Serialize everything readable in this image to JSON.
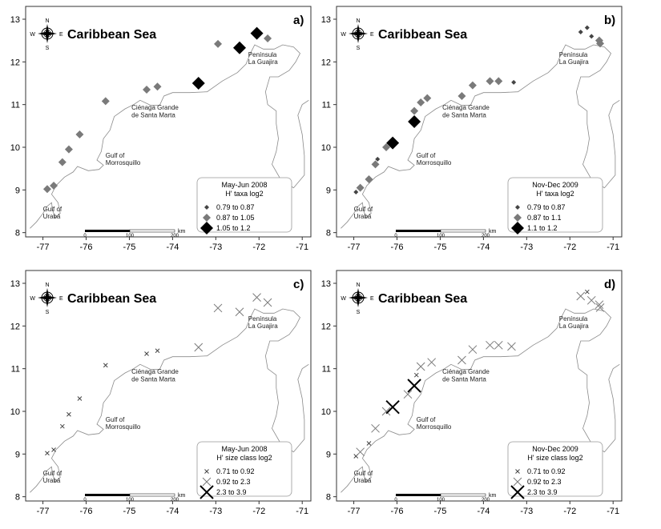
{
  "figure": {
    "sea_label": "Caribbean Sea",
    "place_labels": [
      {
        "id": "guajira-1",
        "text": "Península"
      },
      {
        "id": "guajira-2",
        "text": "La Guajira"
      },
      {
        "id": "cienaga-1",
        "text": "Ciénaga Grande"
      },
      {
        "id": "cienaga-2",
        "text": "de Santa Marta"
      },
      {
        "id": "morro-1",
        "text": "Gulf of"
      },
      {
        "id": "morro-2",
        "text": "Morrosquillo"
      },
      {
        "id": "uraba-1",
        "text": "Gulf of"
      },
      {
        "id": "uraba-2",
        "text": "Urabá"
      }
    ],
    "compass": {
      "n": "N",
      "s": "S",
      "e": "E",
      "w": "W"
    },
    "scale_bar": {
      "ticks": [
        "0",
        "100",
        "200"
      ],
      "unit": "km"
    },
    "x_ticks": [
      "-77",
      "-76",
      "-75",
      "-74",
      "-73",
      "-72",
      "-71"
    ],
    "y_ticks": [
      "8",
      "9",
      "10",
      "11",
      "12",
      "13"
    ]
  },
  "panels": [
    {
      "letter": "a)",
      "legend_title_1": "May-Jun 2008",
      "legend_title_2": "H' taxa log2",
      "symbol": "diamond",
      "classes": [
        {
          "range": "0.79  to  0.87"
        },
        {
          "range": "0.87  to  1.05"
        },
        {
          "range": "1.05  to  1.2"
        }
      ],
      "points": [
        {
          "lon": -76.9,
          "lat": 9.02,
          "cls": 1
        },
        {
          "lon": -76.75,
          "lat": 9.1,
          "cls": 1
        },
        {
          "lon": -76.55,
          "lat": 9.65,
          "cls": 1
        },
        {
          "lon": -76.4,
          "lat": 9.95,
          "cls": 1
        },
        {
          "lon": -76.15,
          "lat": 10.3,
          "cls": 1
        },
        {
          "lon": -75.55,
          "lat": 11.08,
          "cls": 1
        },
        {
          "lon": -74.6,
          "lat": 11.35,
          "cls": 1
        },
        {
          "lon": -74.35,
          "lat": 11.42,
          "cls": 1
        },
        {
          "lon": -73.4,
          "lat": 11.5,
          "cls": 2
        },
        {
          "lon": -72.95,
          "lat": 12.42,
          "cls": 1
        },
        {
          "lon": -72.45,
          "lat": 12.33,
          "cls": 2
        },
        {
          "lon": -72.05,
          "lat": 12.67,
          "cls": 2
        },
        {
          "lon": -71.8,
          "lat": 12.55,
          "cls": 1
        }
      ]
    },
    {
      "letter": "b)",
      "legend_title_1": "Nov-Dec 2009",
      "legend_title_2": "H' taxa log2",
      "symbol": "diamond",
      "classes": [
        {
          "range": "0.79  to  0.87"
        },
        {
          "range": "0.87  to  1.1"
        },
        {
          "range": "1.1  to  1.2"
        }
      ],
      "points": [
        {
          "lon": -76.95,
          "lat": 8.95,
          "cls": 0
        },
        {
          "lon": -76.85,
          "lat": 9.05,
          "cls": 1
        },
        {
          "lon": -76.65,
          "lat": 9.25,
          "cls": 1
        },
        {
          "lon": -76.5,
          "lat": 9.6,
          "cls": 1
        },
        {
          "lon": -76.45,
          "lat": 9.72,
          "cls": 0
        },
        {
          "lon": -76.1,
          "lat": 10.1,
          "cls": 2
        },
        {
          "lon": -76.25,
          "lat": 10.0,
          "cls": 1
        },
        {
          "lon": -75.6,
          "lat": 10.6,
          "cls": 2
        },
        {
          "lon": -75.6,
          "lat": 10.85,
          "cls": 1
        },
        {
          "lon": -75.45,
          "lat": 11.05,
          "cls": 1
        },
        {
          "lon": -75.3,
          "lat": 11.15,
          "cls": 1
        },
        {
          "lon": -74.5,
          "lat": 11.2,
          "cls": 1
        },
        {
          "lon": -74.25,
          "lat": 11.45,
          "cls": 1
        },
        {
          "lon": -73.85,
          "lat": 11.55,
          "cls": 1
        },
        {
          "lon": -73.65,
          "lat": 11.55,
          "cls": 1
        },
        {
          "lon": -73.3,
          "lat": 11.52,
          "cls": 0
        },
        {
          "lon": -71.75,
          "lat": 12.7,
          "cls": 0
        },
        {
          "lon": -71.6,
          "lat": 12.8,
          "cls": 0
        },
        {
          "lon": -71.5,
          "lat": 12.6,
          "cls": 0
        },
        {
          "lon": -71.32,
          "lat": 12.5,
          "cls": 1
        },
        {
          "lon": -71.3,
          "lat": 12.43,
          "cls": 1
        }
      ]
    },
    {
      "letter": "c)",
      "legend_title_1": "May-Jun 2008",
      "legend_title_2": "H' size class log2",
      "symbol": "cross",
      "classes": [
        {
          "range": "0.71  to  0.92"
        },
        {
          "range": "0.92  to  2.3"
        },
        {
          "range": "2.3  to  3.9"
        }
      ],
      "points": [
        {
          "lon": -76.9,
          "lat": 9.02,
          "cls": 0
        },
        {
          "lon": -76.75,
          "lat": 9.1,
          "cls": 0
        },
        {
          "lon": -76.55,
          "lat": 9.65,
          "cls": 0
        },
        {
          "lon": -76.4,
          "lat": 9.93,
          "cls": 0
        },
        {
          "lon": -76.15,
          "lat": 10.3,
          "cls": 0
        },
        {
          "lon": -75.55,
          "lat": 11.08,
          "cls": 0
        },
        {
          "lon": -74.6,
          "lat": 11.35,
          "cls": 0
        },
        {
          "lon": -74.35,
          "lat": 11.42,
          "cls": 0
        },
        {
          "lon": -73.4,
          "lat": 11.5,
          "cls": 1
        },
        {
          "lon": -72.95,
          "lat": 12.42,
          "cls": 1
        },
        {
          "lon": -72.45,
          "lat": 12.33,
          "cls": 1
        },
        {
          "lon": -72.05,
          "lat": 12.67,
          "cls": 1
        },
        {
          "lon": -71.8,
          "lat": 12.55,
          "cls": 1
        }
      ]
    },
    {
      "letter": "d)",
      "legend_title_1": "Nov-Dec 2009",
      "legend_title_2": "H' size class log2",
      "symbol": "cross",
      "classes": [
        {
          "range": "0.71  to  0.92"
        },
        {
          "range": "0.92  to  2.3"
        },
        {
          "range": "2.3  to  3.9"
        }
      ],
      "points": [
        {
          "lon": -76.95,
          "lat": 8.95,
          "cls": 0
        },
        {
          "lon": -76.85,
          "lat": 9.05,
          "cls": 1
        },
        {
          "lon": -76.65,
          "lat": 9.25,
          "cls": 0
        },
        {
          "lon": -76.5,
          "lat": 9.6,
          "cls": 1
        },
        {
          "lon": -76.25,
          "lat": 10.0,
          "cls": 1
        },
        {
          "lon": -76.1,
          "lat": 10.1,
          "cls": 2
        },
        {
          "lon": -75.75,
          "lat": 10.4,
          "cls": 1
        },
        {
          "lon": -75.6,
          "lat": 10.6,
          "cls": 2
        },
        {
          "lon": -75.55,
          "lat": 10.85,
          "cls": 0
        },
        {
          "lon": -75.45,
          "lat": 11.05,
          "cls": 1
        },
        {
          "lon": -75.2,
          "lat": 11.15,
          "cls": 1
        },
        {
          "lon": -74.5,
          "lat": 11.2,
          "cls": 1
        },
        {
          "lon": -74.25,
          "lat": 11.45,
          "cls": 1
        },
        {
          "lon": -73.85,
          "lat": 11.55,
          "cls": 1
        },
        {
          "lon": -73.65,
          "lat": 11.55,
          "cls": 1
        },
        {
          "lon": -73.35,
          "lat": 11.52,
          "cls": 1
        },
        {
          "lon": -71.75,
          "lat": 12.7,
          "cls": 1
        },
        {
          "lon": -71.6,
          "lat": 12.8,
          "cls": 0
        },
        {
          "lon": -71.5,
          "lat": 12.6,
          "cls": 1
        },
        {
          "lon": -71.32,
          "lat": 12.5,
          "cls": 1
        },
        {
          "lon": -71.3,
          "lat": 12.43,
          "cls": 1
        }
      ]
    }
  ]
}
